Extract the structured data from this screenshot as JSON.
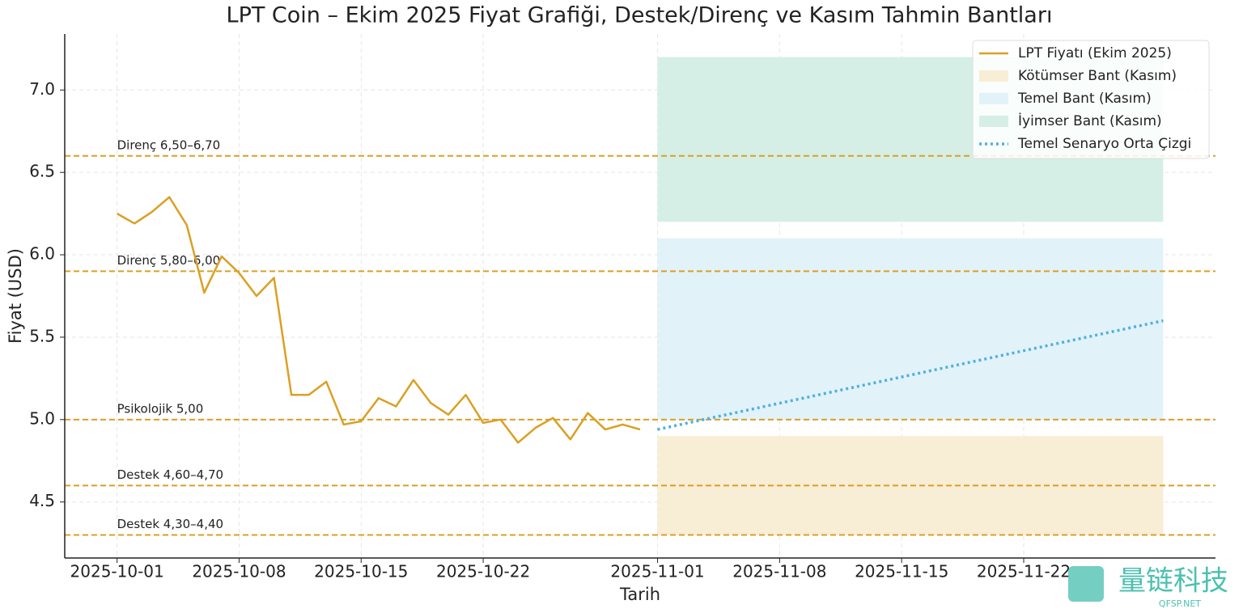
{
  "chart_data": {
    "type": "line",
    "title": "LPT Coin – Ekim 2025 Fiyat Grafiği, Destek/Direnç ve Kasım Tahmin Bantları",
    "xlabel": "Tarih",
    "ylabel": "Fiyat (USD)",
    "x": [
      "2025-10-01",
      "2025-10-02",
      "2025-10-03",
      "2025-10-04",
      "2025-10-05",
      "2025-10-06",
      "2025-10-07",
      "2025-10-08",
      "2025-10-09",
      "2025-10-10",
      "2025-10-11",
      "2025-10-12",
      "2025-10-13",
      "2025-10-14",
      "2025-10-15",
      "2025-10-16",
      "2025-10-17",
      "2025-10-18",
      "2025-10-19",
      "2025-10-20",
      "2025-10-21",
      "2025-10-22",
      "2025-10-23",
      "2025-10-24",
      "2025-10-25",
      "2025-10-26",
      "2025-10-27",
      "2025-10-28",
      "2025-10-29",
      "2025-10-30",
      "2025-10-31"
    ],
    "series": [
      {
        "name": "LPT Fiyatı (Ekim 2025)",
        "color": "#daa024",
        "values": [
          6.25,
          6.19,
          6.26,
          6.35,
          6.18,
          5.77,
          5.99,
          5.89,
          5.75,
          5.86,
          5.15,
          5.15,
          5.23,
          4.97,
          4.99,
          5.13,
          5.08,
          5.24,
          5.1,
          5.03,
          5.15,
          4.98,
          5.0,
          4.86,
          4.95,
          5.01,
          4.88,
          5.04,
          4.94,
          4.97,
          4.94
        ]
      }
    ],
    "bands": [
      {
        "name": "Kötümser Bant (Kasım)",
        "color": "#f8edd5",
        "x": [
          "2025-11-01",
          "2025-11-30"
        ],
        "range": [
          4.3,
          4.9
        ]
      },
      {
        "name": "Temel Bant (Kasım)",
        "color": "#e2f2f9",
        "x": [
          "2025-11-01",
          "2025-11-30"
        ],
        "range": [
          5.0,
          6.1
        ]
      },
      {
        "name": "İyimser Bant (Kasım)",
        "color": "#d5efe6",
        "x": [
          "2025-11-01",
          "2025-11-30"
        ],
        "range": [
          6.2,
          7.2
        ]
      }
    ],
    "forecast_line": {
      "name": "Temel Senaryo Orta Çizgi",
      "color": "#4fb0e0",
      "x": [
        "2025-11-01",
        "2025-11-30"
      ],
      "values": [
        4.94,
        5.6
      ]
    },
    "levels": [
      {
        "label": "Direnç 6,50–6,70",
        "value": 6.6
      },
      {
        "label": "Direnç 5,80–6,00",
        "value": 5.9
      },
      {
        "label": "Psikolojik 5,00",
        "value": 5.0
      },
      {
        "label": "Destek 4,60–4,70",
        "value": 4.6
      },
      {
        "label": "Destek 4,30–4,40",
        "value": 4.3
      }
    ],
    "level_color": "#daa024",
    "xlim": [
      "2025-09-28",
      "2025-12-03"
    ],
    "ylim": [
      4.16,
      7.34
    ],
    "xticks": [
      "2025-10-01",
      "2025-10-08",
      "2025-10-15",
      "2025-10-22",
      "2025-11-01",
      "2025-11-08",
      "2025-11-15",
      "2025-11-22"
    ],
    "yticks": [
      4.5,
      {
        "value": 5.0,
        "label": "5.0"
      },
      5.5,
      {
        "value": 6.0,
        "label": "6.0"
      },
      6.5,
      {
        "value": 7.0,
        "label": "7.0"
      }
    ],
    "grid": true,
    "legend": "upper right"
  },
  "watermark": {
    "text": "量链科技",
    "url": "QFSP.NET"
  }
}
